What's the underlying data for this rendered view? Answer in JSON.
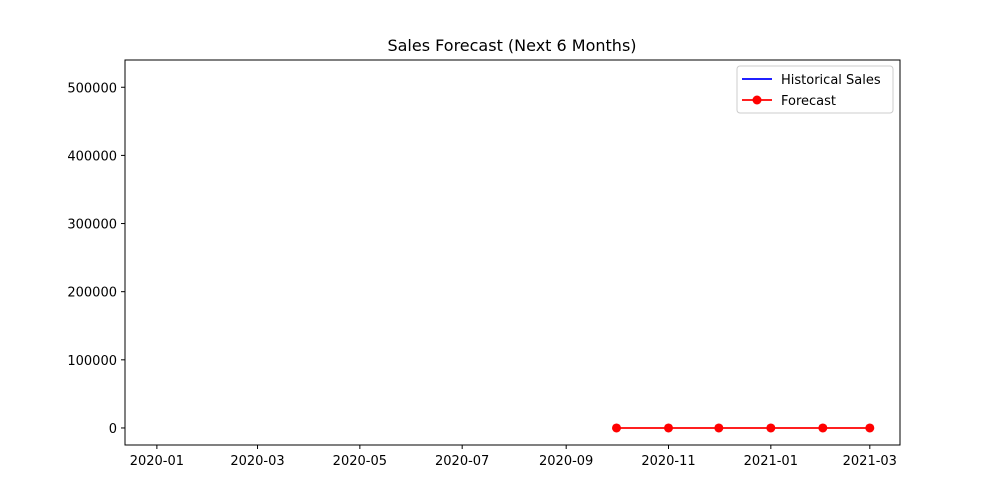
{
  "chart_data": {
    "type": "line",
    "title": "Sales Forecast (Next 6 Months)",
    "xlabel": "",
    "ylabel": "",
    "x_axis": {
      "type": "date",
      "range": [
        "2019-12-13",
        "2021-03-19"
      ],
      "ticks": [
        "2020-01-01",
        "2020-03-01",
        "2020-05-01",
        "2020-07-01",
        "2020-09-01",
        "2020-11-01",
        "2021-01-01",
        "2021-03-01"
      ],
      "tick_labels": [
        "2020-01",
        "2020-03",
        "2020-05",
        "2020-07",
        "2020-09",
        "2020-11",
        "2021-01",
        "2021-03"
      ]
    },
    "y_axis": {
      "range": [
        -25000,
        540000
      ],
      "ticks": [
        0,
        100000,
        200000,
        300000,
        400000,
        500000
      ],
      "tick_labels": [
        "0",
        "100000",
        "200000",
        "300000",
        "400000",
        "500000"
      ]
    },
    "grid": false,
    "legend": {
      "placement": "top-right",
      "entries": [
        {
          "name": "Historical Sales",
          "color": "#0000ff",
          "marker": "none"
        },
        {
          "name": "Forecast",
          "color": "#ff0000",
          "marker": "circle"
        }
      ]
    },
    "series": [
      {
        "name": "Historical Sales",
        "color": "#0000ff",
        "x": [],
        "y": []
      },
      {
        "name": "Forecast",
        "color": "#ff0000",
        "marker": "circle",
        "x": [
          "2020-10-01",
          "2020-11-01",
          "2020-12-01",
          "2021-01-01",
          "2021-02-01",
          "2021-03-01"
        ],
        "y": [
          0,
          0,
          0,
          0,
          0,
          0
        ]
      }
    ]
  }
}
